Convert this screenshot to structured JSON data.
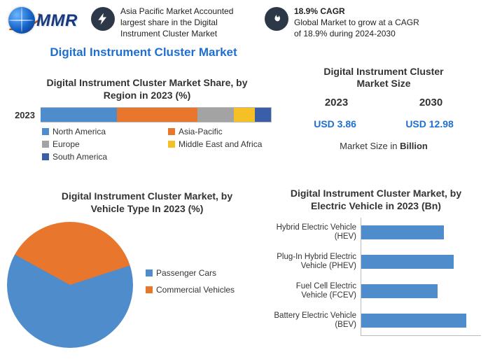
{
  "logo_text": "MMR",
  "badges": {
    "left": {
      "text": "Asia Pacific Market Accounted largest share in the Digital Instrument Cluster Market"
    },
    "right": {
      "title": "18.9% CAGR",
      "text": "Global Market to grow at a CAGR of 18.9% during 2024-2030"
    }
  },
  "main_title": "Digital Instrument Cluster Market",
  "market_size": {
    "title_l1": "Digital Instrument Cluster",
    "title_l2": "Market Size",
    "year1": "2023",
    "year2": "2030",
    "val1": "USD 3.86",
    "val2": "USD 12.98",
    "caption_a": "Market Size in ",
    "caption_b": "Billion"
  },
  "stacked": {
    "title_l1": "Digital Instrument Cluster Market Share, by",
    "title_l2": "Region in 2023 (%)",
    "year_label": "2023",
    "colors": {
      "north_america": "#4f8ccc",
      "asia_pacific": "#e8762d",
      "europe": "#a3a3a3",
      "meafrica": "#f5c026",
      "south_america": "#3a5fa8"
    },
    "segments": [
      {
        "key": "north_america",
        "label": "North America",
        "pct": 33
      },
      {
        "key": "asia_pacific",
        "label": "Asia-Pacific",
        "pct": 35
      },
      {
        "key": "europe",
        "label": "Europe",
        "pct": 16
      },
      {
        "key": "meafrica",
        "label": "Middle East and Africa",
        "pct": 9
      },
      {
        "key": "south_america",
        "label": "South America",
        "pct": 7
      }
    ]
  },
  "pie": {
    "title_l1": "Digital Instrument Cluster Market, by",
    "title_l2": "Vehicle Type In 2023 (%)",
    "slices": [
      {
        "label": "Passenger Cars",
        "pct": 63,
        "color": "#4f8ccc"
      },
      {
        "label": "Commercial Vehicles",
        "pct": 37,
        "color": "#e8762d"
      }
    ]
  },
  "hbar": {
    "title_l1": "Digital Instrument Cluster Market, by",
    "title_l2": "Electric Vehicle in 2023 (Bn)",
    "bar_color": "#4f8ccc",
    "max": 100,
    "items": [
      {
        "label": "Hybrid Electric Vehicle (HEV)",
        "value": 69
      },
      {
        "label": "Plug-In Hybrid Electric Vehicle (PHEV)",
        "value": 77
      },
      {
        "label": "Fuel Cell Electric Vehicle (FCEV)",
        "value": 64
      },
      {
        "label": "Battery Electric Vehicle (BEV)",
        "value": 88
      }
    ]
  }
}
